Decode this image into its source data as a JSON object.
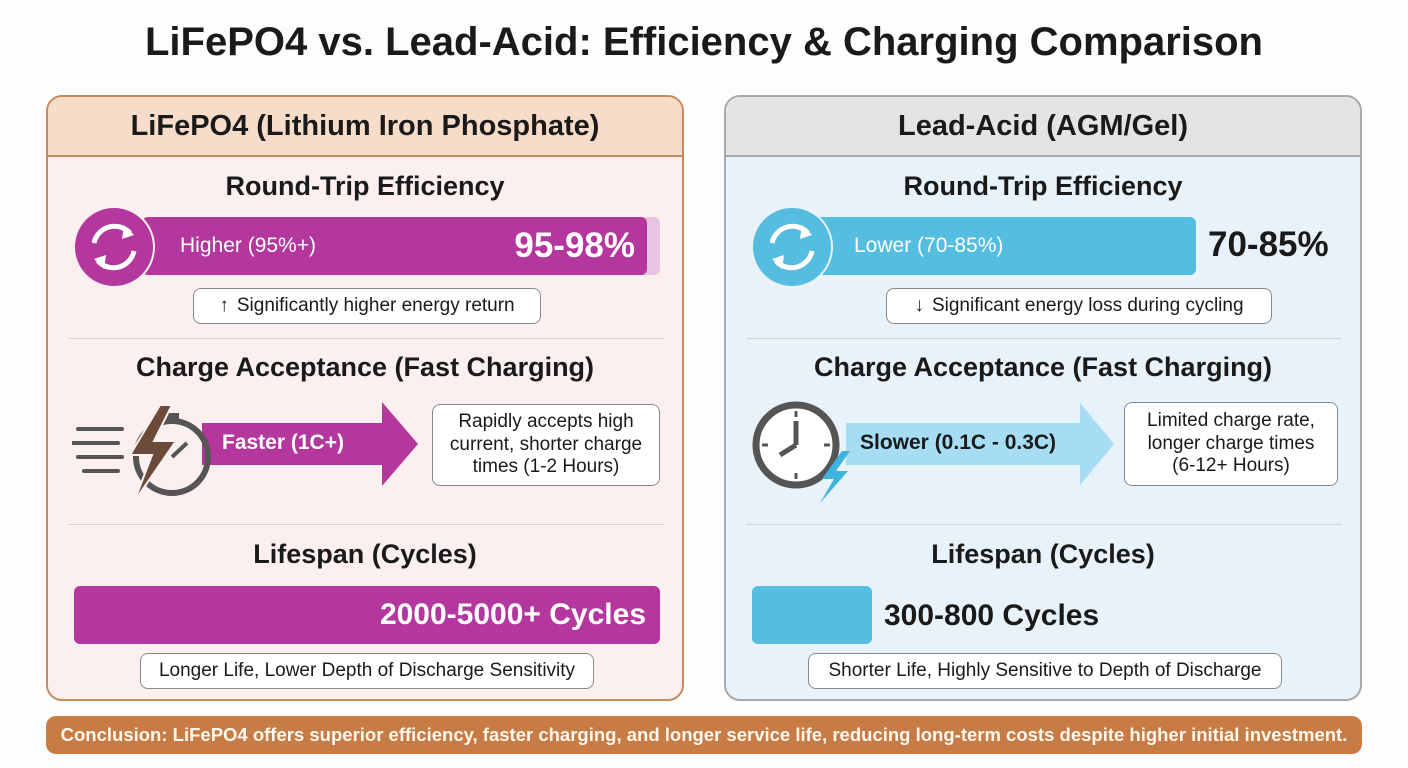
{
  "title": "LiFePO4 vs. Lead-Acid: Efficiency & Charging Comparison",
  "panels": [
    {
      "header": "LiFePO4 (Lithium Iron Phosphate)",
      "efficiency": {
        "heading": "Round-Trip Efficiency",
        "bar_label": "Higher (95%+)",
        "value_label": "95-98%",
        "note": "Significantly higher energy return"
      },
      "charging": {
        "heading": "Charge Acceptance (Fast Charging)",
        "arrow_label": "Faster (1C+)",
        "description": "Rapidly accepts high current, shorter charge times (1-2 Hours)"
      },
      "lifespan": {
        "heading": "Lifespan (Cycles)",
        "bar_label": "2000-5000+ Cycles",
        "note": "Longer Life, Lower Depth of Discharge Sensitivity"
      }
    },
    {
      "header": "Lead-Acid (AGM/Gel)",
      "efficiency": {
        "heading": "Round-Trip Efficiency",
        "bar_label": "Lower (70-85%)",
        "value_label": "70-85%",
        "note": "Significant energy loss during cycling"
      },
      "charging": {
        "heading": "Charge Acceptance (Fast Charging)",
        "arrow_label": "Slower (0.1C - 0.3C)",
        "description": "Limited charge rate, longer charge times (6-12+ Hours)"
      },
      "lifespan": {
        "heading": "Lifespan (Cycles)",
        "bar_label": "300-800 Cycles",
        "note": "Shorter Life, Highly Sensitive to Depth of Discharge"
      }
    }
  ],
  "conclusion": "Conclusion: LiFePO4 offers superior efficiency, faster charging, and longer service life, reducing long-term costs despite higher initial investment."
}
